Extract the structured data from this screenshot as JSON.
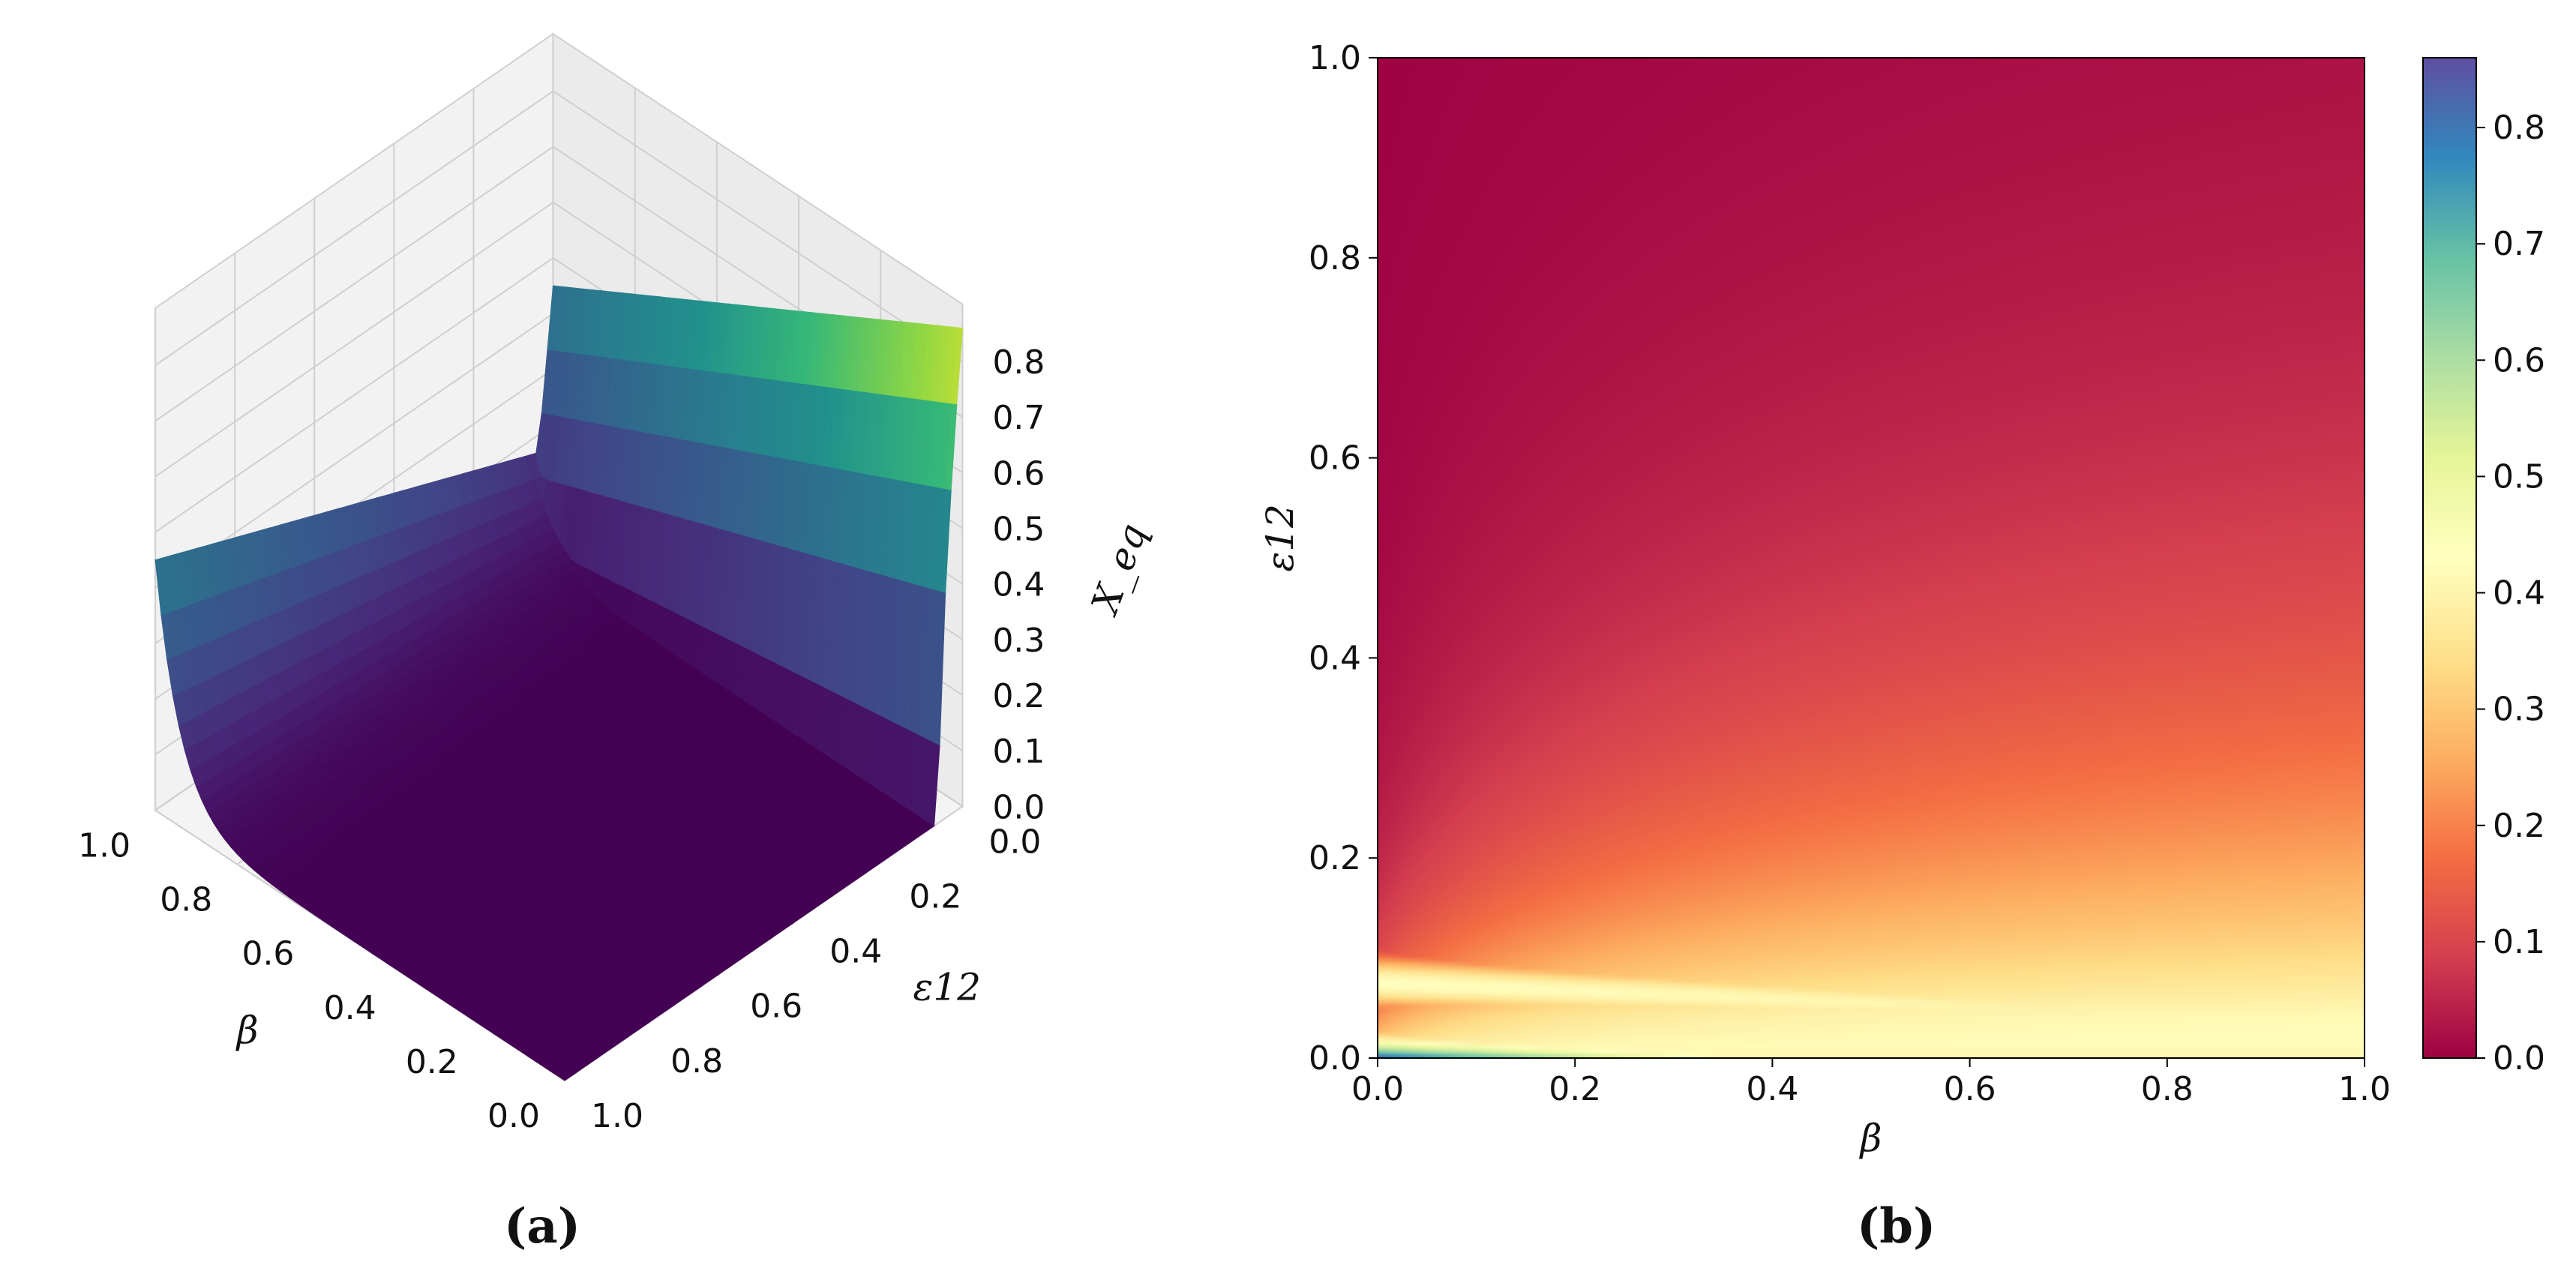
{
  "panels": [
    {
      "id": "a",
      "label": "(a)",
      "chart_data": {
        "type": "surface3d",
        "x_label": "β",
        "y_label": "ε12",
        "z_label": "X_eq",
        "x_ticks": [
          "0.0",
          "0.2",
          "0.4",
          "0.6",
          "0.8",
          "1.0"
        ],
        "y_ticks": [
          "0.0",
          "0.2",
          "0.4",
          "0.6",
          "0.8",
          "1.0"
        ],
        "z_ticks": [
          "0.0",
          "0.1",
          "0.2",
          "0.3",
          "0.4",
          "0.5",
          "0.6",
          "0.7",
          "0.8"
        ],
        "xlim": [
          0,
          1
        ],
        "ylim": [
          0,
          1
        ],
        "zlim": [
          0,
          0.86
        ],
        "colormap": "viridis",
        "corner_values": {
          "beta0_eps0": 0.86,
          "beta1_eps0": 0.45,
          "beta0_eps1": 0.0,
          "beta1_eps1": 0.45
        }
      }
    },
    {
      "id": "b",
      "label": "(b)",
      "chart_data": {
        "type": "heatmap",
        "x_label": "β",
        "y_label": "ε12",
        "x_ticks": [
          "0.0",
          "0.2",
          "0.4",
          "0.6",
          "0.8",
          "1.0"
        ],
        "y_ticks": [
          "0.0",
          "0.2",
          "0.4",
          "0.6",
          "0.8",
          "1.0"
        ],
        "xlim": [
          0,
          1
        ],
        "ylim": [
          0,
          1
        ],
        "colormap": "Spectral",
        "colorbar_ticks": [
          "0.0",
          "0.1",
          "0.2",
          "0.3",
          "0.4",
          "0.5",
          "0.6",
          "0.7",
          "0.8"
        ],
        "colorbar_range": [
          0,
          0.86
        ]
      }
    }
  ]
}
